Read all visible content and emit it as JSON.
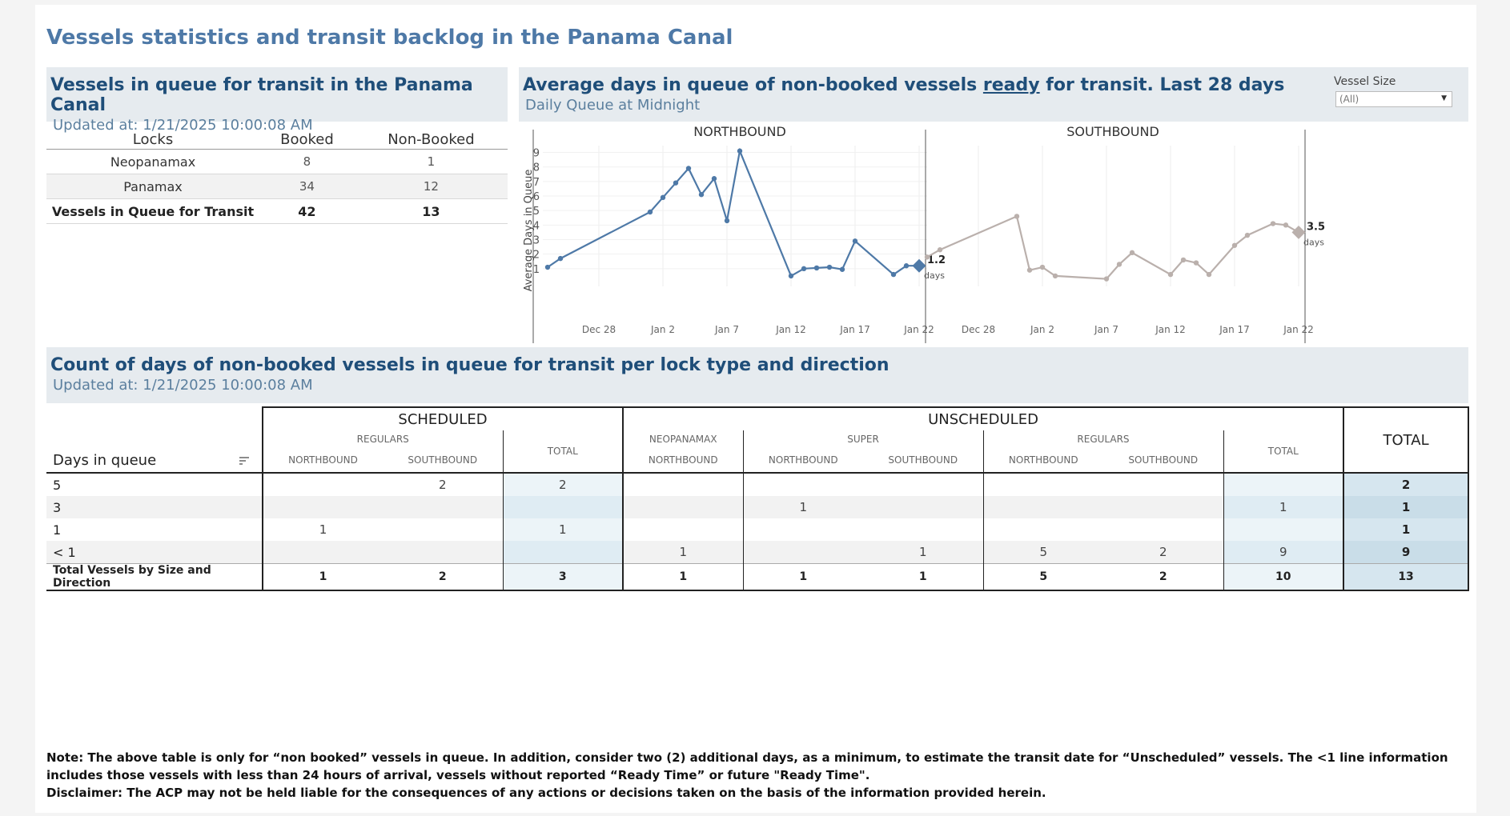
{
  "title": "Vessels statistics and transit backlog in the Panama Canal",
  "queue": {
    "title": "Vessels in queue for transit in the Panama Canal",
    "updated": "Updated at:  1/21/2025 10:00:08 AM",
    "headers": [
      "Locks",
      "Booked",
      "Non-Booked"
    ],
    "rows": [
      {
        "lock": "Neopanamax",
        "booked": "8",
        "nonbooked": "1"
      },
      {
        "lock": "Panamax",
        "booked": "34",
        "nonbooked": "12"
      }
    ],
    "total": {
      "lock": "Vessels in Queue for Transit",
      "booked": "42",
      "nonbooked": "13"
    }
  },
  "chart_panel": {
    "title_pre": "Average days in queue of non-booked vessels ",
    "title_ready": "ready",
    "title_post": " for transit. Last 28 days",
    "subtitle": "Daily Queue at Midnight",
    "filter_label": "Vessel Size",
    "filter_value": "(All)"
  },
  "chart_data": [
    {
      "type": "line",
      "title": "NORTHBOUND",
      "ylabel": "Average Days in Queue",
      "xlabel": "",
      "x_ticks": [
        "Dec 28",
        "Jan 2",
        "Jan 7",
        "Jan 12",
        "Jan 17",
        "Jan 22"
      ],
      "y_ticks": [
        1,
        2,
        3,
        4,
        5,
        6,
        7,
        8,
        9
      ],
      "ylim": [
        0,
        9.8
      ],
      "x": [
        "2024-12-24",
        "2024-12-25",
        "2025-01-01",
        "2025-01-02",
        "2025-01-03",
        "2025-01-04",
        "2025-01-05",
        "2025-01-06",
        "2025-01-07",
        "2025-01-08",
        "2025-01-12",
        "2025-01-13",
        "2025-01-14",
        "2025-01-15",
        "2025-01-16",
        "2025-01-17",
        "2025-01-20",
        "2025-01-21",
        "2025-01-22"
      ],
      "values": [
        1.1,
        1.7,
        4.9,
        5.9,
        6.9,
        7.9,
        6.1,
        7.2,
        4.3,
        9.1,
        0.5,
        1.0,
        1.05,
        1.1,
        0.95,
        2.9,
        0.6,
        1.2,
        1.2
      ],
      "color": "#4e79a7",
      "end_label": "1.2",
      "end_unit": "days"
    },
    {
      "type": "line",
      "title": "SOUTHBOUND",
      "ylabel": "",
      "xlabel": "",
      "x_ticks": [
        "Dec 28",
        "Jan 2",
        "Jan 7",
        "Jan 12",
        "Jan 17",
        "Jan 22"
      ],
      "y_ticks": [],
      "ylim": [
        0,
        9.8
      ],
      "x": [
        "2024-12-24",
        "2024-12-25",
        "2024-12-31",
        "2025-01-01",
        "2025-01-02",
        "2025-01-03",
        "2025-01-07",
        "2025-01-08",
        "2025-01-09",
        "2025-01-12",
        "2025-01-13",
        "2025-01-14",
        "2025-01-15",
        "2025-01-17",
        "2025-01-18",
        "2025-01-20",
        "2025-01-21",
        "2025-01-22"
      ],
      "values": [
        1.8,
        2.3,
        4.6,
        0.9,
        1.1,
        0.5,
        0.3,
        1.3,
        2.1,
        0.6,
        1.6,
        1.4,
        0.6,
        2.6,
        3.3,
        4.1,
        4.0,
        3.5
      ],
      "color": "#bab0ac",
      "end_label": "3.5",
      "end_unit": "days"
    }
  ],
  "count_table": {
    "title": "Count of days of non-booked vessels in queue for transit per lock type and direction",
    "updated": "Updated at:  1/21/2025 10:00:08 AM",
    "group_scheduled": "SCHEDULED",
    "group_unscheduled": "UNSCHEDULED",
    "sub_regulars": "REGULARS",
    "sub_neopanamax": "NEOPANAMAX",
    "sub_super": "SUPER",
    "sub_regulars2": "REGULARS",
    "col_total": "TOTAL",
    "col_total2": "TOTAL",
    "col_grand_total": "TOTAL",
    "dir_north": "NORTHBOUND",
    "dir_south": "SOUTHBOUND",
    "days_label": "Days in queue",
    "rows": [
      {
        "label": "5",
        "c": [
          "",
          "2",
          "2",
          "",
          "",
          "",
          "",
          "",
          "",
          "2"
        ]
      },
      {
        "label": "3",
        "c": [
          "",
          "",
          "",
          "",
          "1",
          "",
          "",
          "",
          "1",
          "1"
        ]
      },
      {
        "label": "1",
        "c": [
          "1",
          "",
          "1",
          "",
          "",
          "",
          "",
          "",
          "",
          "1"
        ]
      },
      {
        "label": "< 1",
        "c": [
          "",
          "",
          "",
          "1",
          "",
          "1",
          "5",
          "2",
          "9",
          "9"
        ]
      }
    ],
    "total_row": {
      "label": "Total Vessels by Size and Direction",
      "c": [
        "1",
        "2",
        "3",
        "1",
        "1",
        "1",
        "5",
        "2",
        "10",
        "13"
      ]
    }
  },
  "notes": {
    "note": "Note:  The above table is only for “non booked” vessels in queue. In addition, consider two (2) additional days, as a minimum, to estimate the transit date for “Unscheduled” vessels.  The <1 line information includes those vessels with less than 24 hours of arrival, vessels without reported “Ready Time” or future \"Ready Time\".",
    "disclaimer": "Disclaimer: The ACP may not be held liable for the consequences of any actions or decisions taken on the basis of the information provided herein."
  }
}
